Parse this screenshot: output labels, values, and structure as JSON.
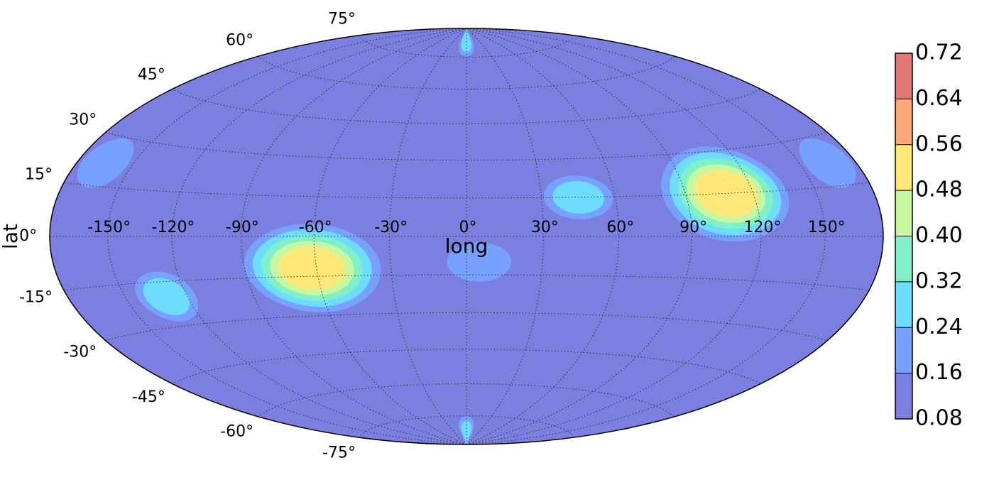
{
  "chart_data": {
    "type": "contour",
    "projection": "hammer",
    "xlabel": "long",
    "ylabel": "lat",
    "xticks": [
      {
        "value": -150,
        "label": "-150°"
      },
      {
        "value": -120,
        "label": "-120°"
      },
      {
        "value": -90,
        "label": "-90°"
      },
      {
        "value": -60,
        "label": "-60°"
      },
      {
        "value": -30,
        "label": "-30°"
      },
      {
        "value": 0,
        "label": "0°"
      },
      {
        "value": 30,
        "label": "30°"
      },
      {
        "value": 60,
        "label": "60°"
      },
      {
        "value": 90,
        "label": "90°"
      },
      {
        "value": 120,
        "label": "120°"
      },
      {
        "value": 150,
        "label": "150°"
      }
    ],
    "yticks": [
      {
        "value": -75,
        "label": "-75°"
      },
      {
        "value": -60,
        "label": "-60°"
      },
      {
        "value": -45,
        "label": "-45°"
      },
      {
        "value": -30,
        "label": "-30°"
      },
      {
        "value": -15,
        "label": "-15°"
      },
      {
        "value": 0,
        "label": "0°"
      },
      {
        "value": 15,
        "label": "15°"
      },
      {
        "value": 30,
        "label": "30°"
      },
      {
        "value": 45,
        "label": "45°"
      },
      {
        "value": 60,
        "label": "60°"
      },
      {
        "value": 75,
        "label": "75°"
      }
    ],
    "xlim": [
      -180,
      180
    ],
    "ylim": [
      -90,
      90
    ],
    "grid": true,
    "levels": [
      0.08,
      0.16,
      0.24,
      0.32,
      {
        "value": 0.4,
        "label": "0.40"
      },
      0.48,
      0.56,
      0.64,
      0.72
    ],
    "colors": [
      "#7b7fe0",
      "#78a0ff",
      "#6ddcff",
      "#7ff0c8",
      "#c8f7a0",
      "#ffe878",
      "#ffa878",
      "#e07878"
    ],
    "peaks": [
      {
        "lon": -62,
        "lat": -12,
        "value": 0.56
      },
      {
        "lon": 108,
        "lat": 15,
        "value": 0.56
      },
      {
        "lon": 45,
        "lat": 15,
        "value": 0.25
      },
      {
        "lon": -130,
        "lat": -20,
        "value": 0.25
      },
      {
        "lon": 5,
        "lat": -10,
        "value": 0.22
      },
      {
        "lon": 165,
        "lat": 22,
        "value": 0.22
      },
      {
        "lon": -165,
        "lat": 22,
        "value": 0.22
      },
      {
        "lon": 0,
        "lat": 84,
        "value": 0.26
      },
      {
        "lon": 0,
        "lat": -84,
        "value": 0.26
      }
    ]
  }
}
